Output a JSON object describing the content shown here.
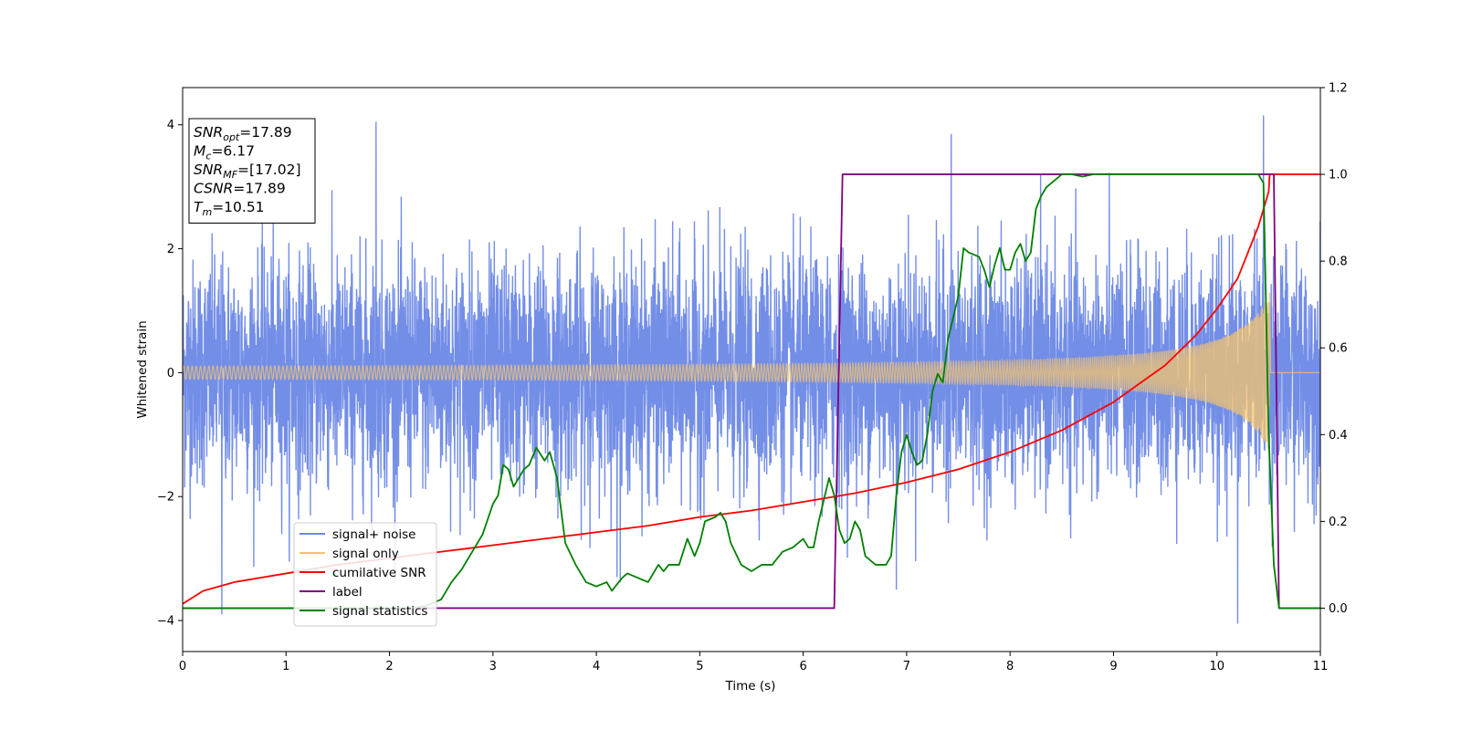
{
  "chart_data": {
    "type": "line",
    "xlabel": "Time (s)",
    "ylabel": "Whitened strain",
    "xlim": [
      0,
      11
    ],
    "ylim_left": [
      -4.5,
      4.6
    ],
    "ylim_right": [
      -0.1,
      1.2
    ],
    "x_ticks": [
      "0",
      "1",
      "2",
      "3",
      "4",
      "5",
      "6",
      "7",
      "8",
      "9",
      "10",
      "11"
    ],
    "x_tick_values": [
      0,
      1,
      2,
      3,
      4,
      5,
      6,
      7,
      8,
      9,
      10,
      11
    ],
    "y_left_ticks": [
      "−4",
      "−2",
      "0",
      "2",
      "4"
    ],
    "y_left_tick_values": [
      -4,
      -2,
      0,
      2,
      4
    ],
    "y_right_ticks": [
      "0.0",
      "0.2",
      "0.4",
      "0.6",
      "0.8",
      "1.0",
      "1.2"
    ],
    "y_right_tick_values": [
      0.0,
      0.2,
      0.4,
      0.6,
      0.8,
      1.0,
      1.2
    ],
    "annotation": {
      "lines": [
        {
          "main": "SNR",
          "sub": "opt",
          "rest": "=17.89"
        },
        {
          "main": "M",
          "sub": "c",
          "rest": "=6.17"
        },
        {
          "main": "SNR",
          "sub": "MF",
          "rest": "=[17.02]"
        },
        {
          "main": "CSNR",
          "sub": "",
          "rest": "=17.89"
        },
        {
          "main": "T",
          "sub": "m",
          "rest": "=10.51"
        }
      ]
    },
    "legend": {
      "placement": "lower-left",
      "entries": [
        {
          "label": "signal+ noise",
          "color": "#6b88e6"
        },
        {
          "label": "signal only",
          "color": "#f5c46e"
        },
        {
          "label": "cumilative SNR",
          "color": "#ff0000"
        },
        {
          "label": "label",
          "color": "#800080"
        },
        {
          "label": "signal statistics",
          "color": "#008000"
        }
      ]
    },
    "series": [
      {
        "name": "signal+ noise",
        "axis": "left",
        "color": "#6b88e6",
        "kind": "noise",
        "std": 0.9,
        "t_range": [
          0,
          11
        ],
        "extremes": [
          [
            0.38,
            -3.9
          ],
          [
            1.87,
            4.05
          ],
          [
            7.43,
            3.85
          ],
          [
            10.45,
            4.15
          ],
          [
            10.2,
            -4.05
          ],
          [
            6.9,
            -3.5
          ],
          [
            4.2,
            -3.3
          ]
        ]
      },
      {
        "name": "signal only",
        "axis": "left",
        "color": "#f5c46e",
        "kind": "chirp",
        "t_range": [
          0,
          10.51
        ],
        "amp_start": 0.08,
        "amp_end": 1.3,
        "t_merge": 10.51
      },
      {
        "name": "cumilative SNR",
        "axis": "right",
        "color": "#ff0000",
        "x": [
          0,
          0.2,
          0.5,
          1,
          1.5,
          2,
          2.5,
          3,
          3.5,
          4,
          4.5,
          5,
          5.5,
          6,
          6.5,
          7,
          7.5,
          8,
          8.5,
          9,
          9.5,
          9.8,
          10,
          10.2,
          10.4,
          10.5,
          10.51,
          11
        ],
        "values": [
          0.01,
          0.04,
          0.06,
          0.08,
          0.1,
          0.115,
          0.13,
          0.145,
          0.16,
          0.175,
          0.19,
          0.21,
          0.225,
          0.245,
          0.265,
          0.29,
          0.32,
          0.36,
          0.41,
          0.475,
          0.56,
          0.63,
          0.69,
          0.76,
          0.88,
          0.96,
          1.0,
          1.0
        ]
      },
      {
        "name": "label",
        "axis": "right",
        "color": "#800080",
        "x": [
          0,
          6.3,
          6.38,
          10.55,
          10.6,
          11
        ],
        "values": [
          0,
          0,
          1,
          1,
          0,
          0
        ]
      },
      {
        "name": "signal statistics",
        "axis": "right",
        "color": "#008000",
        "x": [
          0,
          2.2,
          2.35,
          2.5,
          2.6,
          2.7,
          2.8,
          2.9,
          3.0,
          3.05,
          3.1,
          3.15,
          3.2,
          3.25,
          3.3,
          3.35,
          3.42,
          3.5,
          3.55,
          3.62,
          3.7,
          3.8,
          3.9,
          4.0,
          4.1,
          4.15,
          4.25,
          4.3,
          4.4,
          4.5,
          4.6,
          4.65,
          4.7,
          4.8,
          4.88,
          4.95,
          5.0,
          5.05,
          5.15,
          5.2,
          5.25,
          5.3,
          5.4,
          5.5,
          5.6,
          5.7,
          5.8,
          5.9,
          6.0,
          6.05,
          6.1,
          6.15,
          6.2,
          6.25,
          6.3,
          6.35,
          6.4,
          6.45,
          6.5,
          6.55,
          6.6,
          6.7,
          6.8,
          6.85,
          6.9,
          6.95,
          7.0,
          7.05,
          7.1,
          7.15,
          7.2,
          7.25,
          7.3,
          7.35,
          7.4,
          7.45,
          7.5,
          7.55,
          7.6,
          7.7,
          7.75,
          7.8,
          7.85,
          7.9,
          7.95,
          8.0,
          8.05,
          8.1,
          8.15,
          8.2,
          8.25,
          8.3,
          8.35,
          8.4,
          8.5,
          8.6,
          8.7,
          8.8,
          9.0,
          9.2,
          9.4,
          9.6,
          9.8,
          10.0,
          10.2,
          10.4,
          10.45,
          10.5,
          10.55,
          10.6,
          11
        ],
        "values": [
          0,
          0,
          0.005,
          0.02,
          0.06,
          0.09,
          0.13,
          0.17,
          0.24,
          0.26,
          0.33,
          0.32,
          0.28,
          0.3,
          0.32,
          0.33,
          0.37,
          0.34,
          0.36,
          0.3,
          0.15,
          0.1,
          0.06,
          0.05,
          0.06,
          0.04,
          0.07,
          0.08,
          0.07,
          0.06,
          0.1,
          0.085,
          0.1,
          0.1,
          0.16,
          0.12,
          0.15,
          0.2,
          0.21,
          0.22,
          0.2,
          0.15,
          0.1,
          0.085,
          0.1,
          0.1,
          0.13,
          0.14,
          0.16,
          0.14,
          0.14,
          0.2,
          0.25,
          0.3,
          0.26,
          0.18,
          0.15,
          0.16,
          0.2,
          0.18,
          0.12,
          0.1,
          0.1,
          0.12,
          0.26,
          0.36,
          0.4,
          0.36,
          0.33,
          0.34,
          0.4,
          0.5,
          0.54,
          0.52,
          0.62,
          0.67,
          0.72,
          0.83,
          0.82,
          0.81,
          0.78,
          0.74,
          0.79,
          0.83,
          0.78,
          0.78,
          0.82,
          0.84,
          0.8,
          0.82,
          0.92,
          0.95,
          0.97,
          0.98,
          1.0,
          1.0,
          0.995,
          1.0,
          1.0,
          1.0,
          1.0,
          1.0,
          1.0,
          1.0,
          1.0,
          1.0,
          0.98,
          0.4,
          0.1,
          0.0,
          0.0
        ]
      }
    ]
  }
}
